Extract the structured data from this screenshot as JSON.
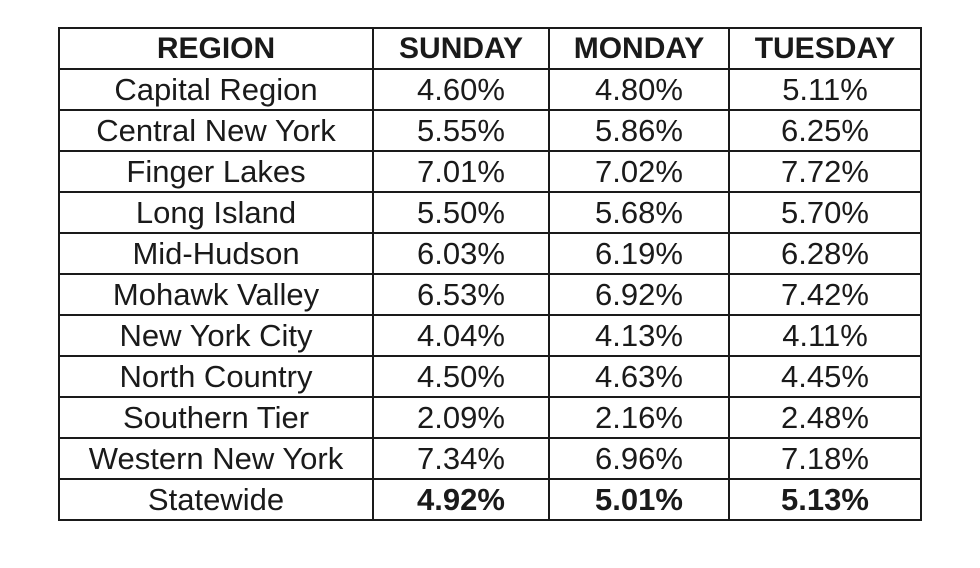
{
  "table": {
    "headers": [
      "REGION",
      "SUNDAY",
      "MONDAY",
      "TUESDAY"
    ],
    "rows": [
      [
        "Capital Region",
        "4.60%",
        "4.80%",
        "5.11%"
      ],
      [
        "Central New York",
        "5.55%",
        "5.86%",
        "6.25%"
      ],
      [
        "Finger Lakes",
        "7.01%",
        "7.02%",
        "7.72%"
      ],
      [
        "Long Island",
        "5.50%",
        "5.68%",
        "5.70%"
      ],
      [
        "Mid-Hudson",
        "6.03%",
        "6.19%",
        "6.28%"
      ],
      [
        "Mohawk Valley",
        "6.53%",
        "6.92%",
        "7.42%"
      ],
      [
        "New York City",
        "4.04%",
        "4.13%",
        "4.11%"
      ],
      [
        "North Country",
        "4.50%",
        "4.63%",
        "4.45%"
      ],
      [
        "Southern Tier",
        "2.09%",
        "2.16%",
        "2.48%"
      ],
      [
        "Western New York",
        "7.34%",
        "6.96%",
        "7.18%"
      ],
      [
        "Statewide",
        "4.92%",
        "5.01%",
        "5.13%"
      ]
    ],
    "bold_rows": [
      "Statewide"
    ]
  }
}
